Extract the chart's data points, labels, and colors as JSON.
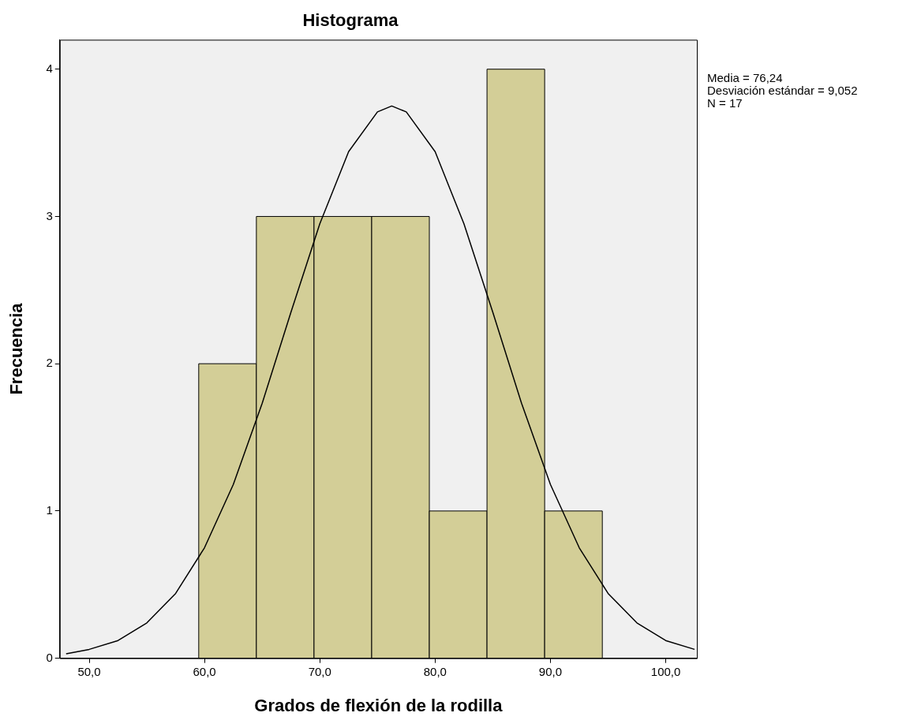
{
  "chart_data": {
    "type": "histogram",
    "title": "Histograma",
    "xlabel": "Grados de flexión de la rodilla",
    "ylabel": "Frecuencia",
    "bins": [
      59.5,
      64.5,
      69.5,
      74.5,
      79.5,
      84.5,
      89.5,
      94.5
    ],
    "values": [
      2,
      3,
      3,
      3,
      1,
      4,
      1
    ],
    "color": "#d3ce97",
    "series": [
      {
        "type": "line",
        "color": "#000000",
        "x": [
          48,
          50,
          52.5,
          55,
          57.5,
          60,
          62.5,
          65,
          67.5,
          70,
          72.5,
          75,
          76.24,
          77.5,
          80,
          82.5,
          85,
          87.5,
          90,
          92.5,
          95,
          97.5,
          100,
          102.5
        ],
        "values": [
          0.03,
          0.06,
          0.12,
          0.24,
          0.44,
          0.75,
          1.18,
          1.73,
          2.35,
          2.95,
          3.44,
          3.71,
          3.75,
          3.71,
          3.44,
          2.95,
          2.35,
          1.73,
          1.18,
          0.75,
          0.44,
          0.24,
          0.12,
          0.06
        ]
      }
    ],
    "xlim": [
      47.45,
      102.7
    ],
    "xticks": [
      {
        "value": 50,
        "label": "50,0"
      },
      {
        "value": 60,
        "label": "60,0"
      },
      {
        "value": 70,
        "label": "70,0"
      },
      {
        "value": 80,
        "label": "80,0"
      },
      {
        "value": 90,
        "label": "90,0"
      },
      {
        "value": 100,
        "label": "100,0"
      }
    ],
    "ylim": [
      0,
      4.2
    ],
    "yticks": [
      0,
      1,
      2,
      3,
      4
    ],
    "grid": false,
    "legend": false,
    "marker": "none",
    "annotations": [
      "Media = 76,24",
      "Desviación estándar = 9,052",
      "N = 17"
    ]
  }
}
